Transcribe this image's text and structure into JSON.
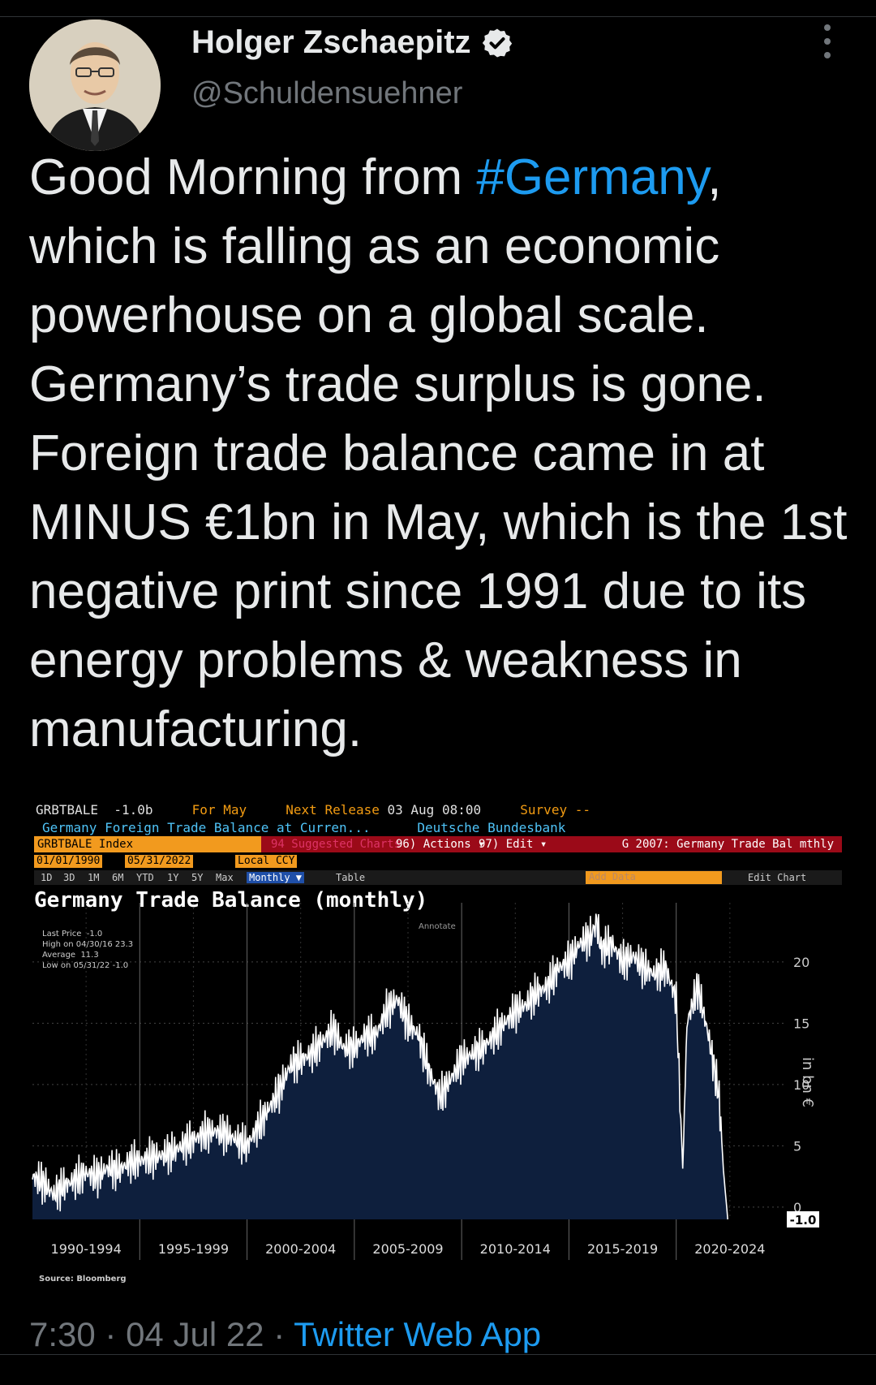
{
  "author": {
    "name": "Holger Zschaepitz",
    "handle": "@Schuldensuehner"
  },
  "tweet": {
    "line1_pre": "Good Morning from ",
    "hashtag": "#Germany",
    "line1_post": ",",
    "rest": "which is falling as an economic powerhouse on a global scale. Germany’s trade surplus is gone. Foreign trade balance came in at MINUS €1bn in May, which is the 1st negative print since 1991 due to its energy problems & weakness in manufacturing."
  },
  "meta": {
    "time": "7:30",
    "date": "04 Jul 22",
    "sep": " · ",
    "app": "Twitter Web App"
  },
  "terminal": {
    "ticker": "GRBTBALE",
    "last": "-1.0b",
    "for_label": "For May",
    "next_release_label": "Next Release",
    "next_release": "03 Aug 08:00",
    "survey": "Survey --",
    "desc": "Germany Foreign Trade Balance at Curren...",
    "source_name": "Deutsche Bundesbank",
    "index": "GRBTBALE Index",
    "suggested": "94 Suggested Charts",
    "actions": "96) Actions ▾",
    "edit": "97) Edit ▾",
    "graph_title": "G 2007: Germany Trade Bal mthly",
    "date_start": "01/01/1990",
    "date_end": "05/31/2022",
    "currency": "Local CCY",
    "periods": [
      "1D",
      "3D",
      "1M",
      "6M",
      "YTD",
      "1Y",
      "5Y",
      "Max"
    ],
    "frequency": "Monthly ▼",
    "table": "Table",
    "add_data": "Add Data",
    "edit_chart": "Edit Chart",
    "annotate": "Annotate"
  },
  "legend": {
    "last_label": "Last Price",
    "last_value": "-1.0",
    "high_label": "High on 04/30/16",
    "high_value": "23.3",
    "avg_label": "Average",
    "avg_value": "11.3",
    "low_label": "Low on 05/31/22",
    "low_value": "-1.0"
  },
  "chart_data": {
    "type": "area",
    "title": "Germany Trade Balance (monthly)",
    "ylabel": "in bn €",
    "ylim": [
      -1,
      23.5
    ],
    "yticks": [
      0,
      5,
      10,
      15,
      20
    ],
    "x_categories": [
      "1990-1994",
      "1995-1999",
      "2000-2004",
      "2005-2009",
      "2010-2014",
      "2015-2019",
      "2020-2024"
    ],
    "last_value_label": "-1.0",
    "series": [
      {
        "x": [
          1990.0,
          1990.5,
          1991.0,
          1991.5,
          1992.0,
          1992.5,
          1993.0,
          1993.5,
          1994.0,
          1994.5,
          1995.0,
          1995.5,
          1996.0,
          1996.5,
          1997.0,
          1997.5,
          1998.0,
          1998.5,
          1999.0,
          1999.5,
          2000.0,
          2000.5,
          2001.0,
          2001.5,
          2002.0,
          2002.5,
          2003.0,
          2003.5,
          2004.0,
          2004.5,
          2005.0,
          2005.5,
          2006.0,
          2006.5,
          2007.0,
          2007.5,
          2008.0,
          2008.5,
          2009.0,
          2009.5,
          2010.0,
          2010.5,
          2011.0,
          2011.5,
          2012.0,
          2012.5,
          2013.0,
          2013.5,
          2014.0,
          2014.5,
          2015.0,
          2015.5,
          2016.0,
          2016.3,
          2016.5,
          2017.0,
          2017.5,
          2018.0,
          2018.5,
          2019.0,
          2019.5,
          2020.0,
          2020.3,
          2020.5,
          2021.0,
          2021.5,
          2022.0,
          2022.2,
          2022.4
        ],
        "y": [
          2.5,
          2.0,
          1.0,
          1.8,
          2.2,
          2.8,
          2.5,
          3.2,
          3.0,
          3.6,
          3.8,
          4.0,
          4.2,
          4.5,
          5.0,
          5.5,
          6.0,
          6.2,
          6.0,
          5.5,
          5.0,
          6.5,
          8.0,
          9.5,
          11.5,
          12.0,
          12.5,
          13.5,
          14.5,
          13.0,
          13.0,
          14.0,
          14.0,
          16.0,
          17.0,
          15.0,
          14.0,
          11.0,
          9.0,
          10.5,
          12.0,
          12.5,
          13.0,
          14.0,
          15.0,
          16.0,
          16.5,
          17.5,
          18.0,
          19.5,
          20.0,
          21.5,
          22.0,
          23.3,
          21.0,
          21.5,
          20.0,
          20.5,
          19.5,
          19.0,
          19.5,
          17.0,
          3.0,
          15.0,
          18.0,
          14.0,
          9.0,
          3.0,
          -1.0
        ]
      }
    ]
  },
  "chart_source": "Source: Bloomberg",
  "colors": {
    "background": "#000000",
    "text": "#e7e9ea",
    "muted": "#71767b",
    "link": "#1d9bf0",
    "area_fill": "#0e1f3d",
    "line": "#ffffff",
    "bloomberg_orange": "#f29a1e",
    "bloomberg_red": "#9b0a18"
  }
}
